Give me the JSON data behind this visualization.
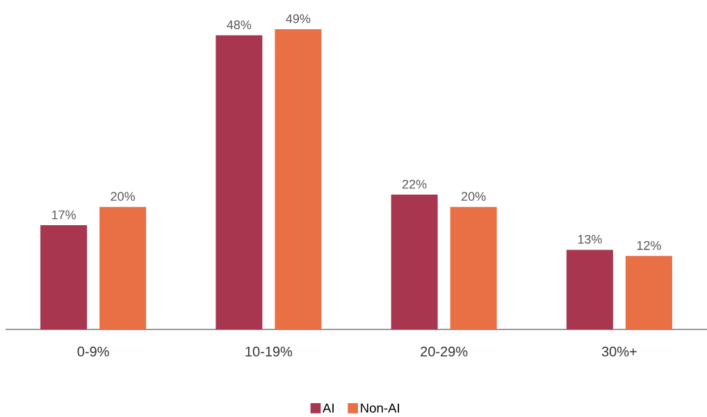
{
  "chart_data": {
    "type": "bar",
    "categories": [
      "0-9%",
      "10-19%",
      "20-29%",
      "30%+"
    ],
    "series": [
      {
        "name": "AI",
        "color": "#a8364e",
        "values": [
          17,
          48,
          22,
          13
        ],
        "value_labels": [
          "17%",
          "48%",
          "22%",
          "13%"
        ]
      },
      {
        "name": "Non-AI",
        "color": "#e87044",
        "values": [
          20,
          49,
          20,
          12
        ],
        "value_labels": [
          "20%",
          "49%",
          "20%",
          "12%"
        ]
      }
    ],
    "legend": "bottom"
  }
}
